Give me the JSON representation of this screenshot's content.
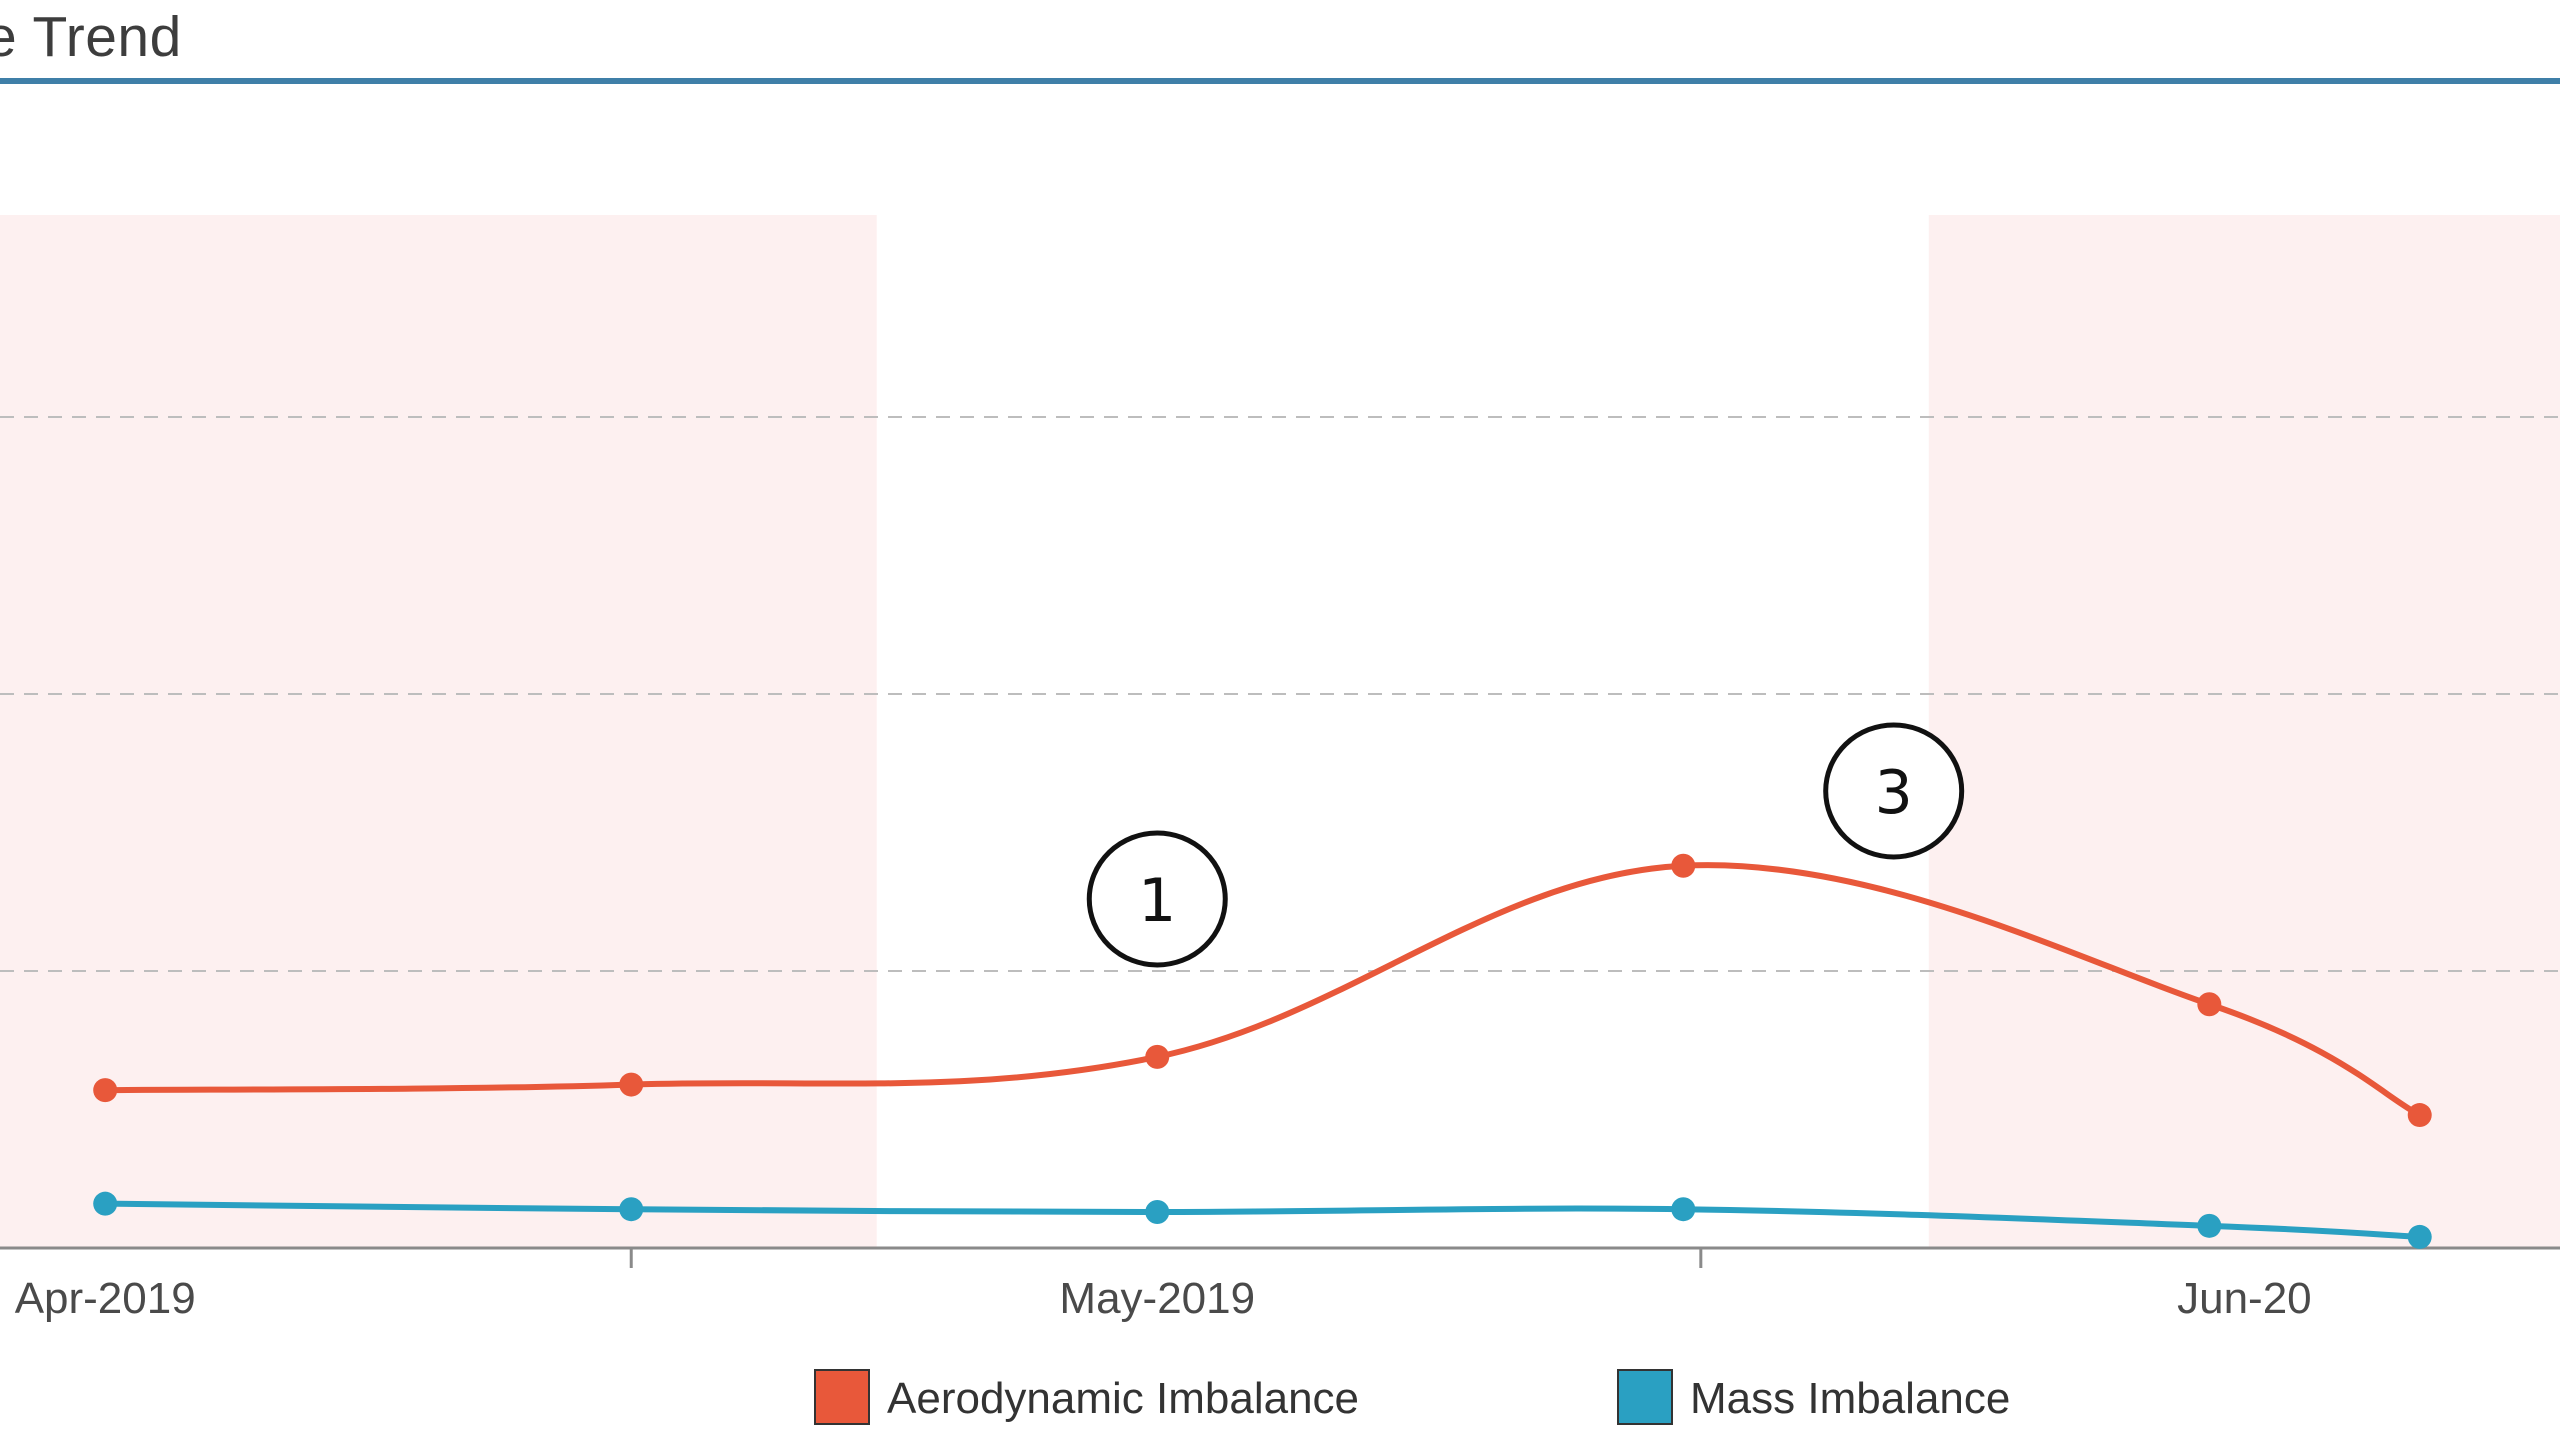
{
  "chart_data": {
    "type": "line",
    "title": "ce Trend",
    "x": [
      "2019-04-01",
      "2019-04-16",
      "2019-05-01",
      "2019-05-16",
      "2019-05-31",
      "2019-06-06"
    ],
    "xticks": [
      "2019-04-01",
      "2019-05-01",
      "2019-06-01"
    ],
    "xtick_labels": [
      "Apr-2019",
      "May-2019",
      "Jun-20"
    ],
    "xlim": [
      "2019-03-29",
      "2019-06-10"
    ],
    "ylim": [
      0,
      4
    ],
    "grid": true,
    "series": [
      {
        "name": "Aerodynamic Imbalance",
        "color": "#e8583a",
        "values": [
          0.57,
          0.59,
          0.69,
          1.38,
          0.88,
          0.48
        ]
      },
      {
        "name": "Mass Imbalance",
        "color": "#2aa0c2",
        "values": [
          0.16,
          0.14,
          0.13,
          0.14,
          0.08,
          0.04
        ]
      }
    ],
    "shaded_regions": [
      {
        "from": "2019-03-29",
        "to": "2019-04-23",
        "color": "#fdf0f0"
      },
      {
        "from": "2019-05-23",
        "to": "2019-06-10",
        "color": "#fdf0f0"
      }
    ],
    "annotations": [
      {
        "label": "1",
        "x": "2019-05-01",
        "y": 1.26
      },
      {
        "label": "3",
        "x": "2019-05-22",
        "y": 1.65
      }
    ],
    "legend": {
      "position": "bottom"
    }
  }
}
